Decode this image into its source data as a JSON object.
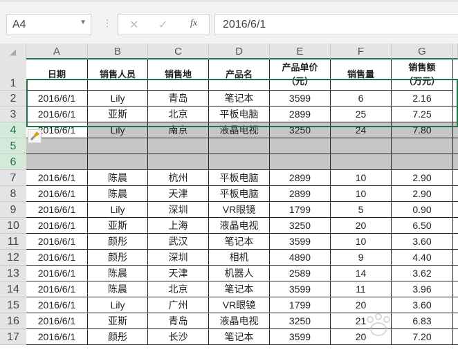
{
  "formula_bar": {
    "name_box": "A4",
    "cancel_icon": "✕",
    "enter_icon": "✓",
    "fx_label": "fx",
    "formula": "2016/6/1"
  },
  "columns": [
    "A",
    "B",
    "C",
    "D",
    "E",
    "F",
    "G"
  ],
  "header_row": [
    "日期",
    "销售人员",
    "销售地",
    "产品名",
    "产品单价\n（元）",
    "销售量",
    "销售额\n（万元）"
  ],
  "rows": [
    [
      "2",
      "2016/6/1",
      "Lily",
      "青岛",
      "笔记本",
      "3599",
      "6",
      "2.16"
    ],
    [
      "3",
      "2016/6/1",
      "亚斯",
      "北京",
      "平板电脑",
      "2899",
      "25",
      "7.25"
    ],
    [
      "4",
      "2016/6/1",
      "Lily",
      "南京",
      "液晶电视",
      "3250",
      "24",
      "7.80"
    ],
    [
      "5",
      "",
      "",
      "",
      "",
      "",
      "",
      ""
    ],
    [
      "6",
      "",
      "",
      "",
      "",
      "",
      "",
      ""
    ],
    [
      "7",
      "2016/6/1",
      "陈晨",
      "杭州",
      "平板电脑",
      "2899",
      "10",
      "2.90"
    ],
    [
      "8",
      "2016/6/1",
      "陈晨",
      "天津",
      "平板电脑",
      "2899",
      "10",
      "2.90"
    ],
    [
      "9",
      "2016/6/1",
      "Lily",
      "深圳",
      "VR眼镜",
      "1799",
      "5",
      "0.90"
    ],
    [
      "10",
      "2016/6/1",
      "亚斯",
      "上海",
      "液晶电视",
      "3250",
      "20",
      "6.50"
    ],
    [
      "11",
      "2016/6/1",
      "颜彤",
      "武汉",
      "笔记本",
      "3599",
      "10",
      "3.60"
    ],
    [
      "12",
      "2016/6/1",
      "颜彤",
      "深圳",
      "相机",
      "4890",
      "9",
      "4.40"
    ],
    [
      "13",
      "2016/6/1",
      "陈晨",
      "天津",
      "机器人",
      "2589",
      "14",
      "3.62"
    ],
    [
      "14",
      "2016/6/1",
      "陈晨",
      "北京",
      "笔记本",
      "3599",
      "11",
      "3.96"
    ],
    [
      "15",
      "2016/6/1",
      "Lily",
      "广州",
      "VR眼镜",
      "1799",
      "20",
      "3.60"
    ],
    [
      "16",
      "2016/6/1",
      "亚斯",
      "青岛",
      "液晶电视",
      "3250",
      "21",
      "6.83"
    ],
    [
      "17",
      "2016/6/1",
      "颜彤",
      "长沙",
      "笔记本",
      "3599",
      "20",
      "7.20"
    ]
  ],
  "watermark": "Baidu 经验 jingyan.baidu.com",
  "colors": {
    "selection": "#217346",
    "selected_fill": "#c6c6c6"
  }
}
